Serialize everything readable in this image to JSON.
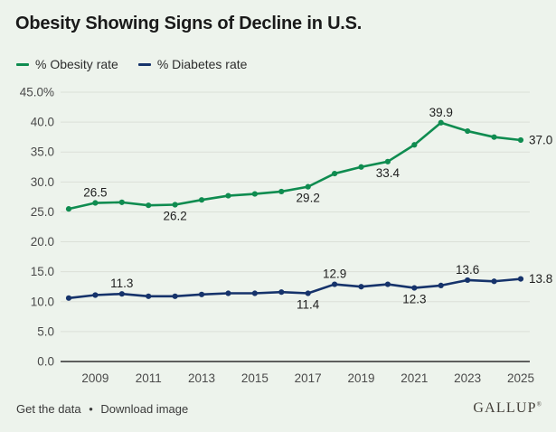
{
  "title": "Obesity Showing Signs of Decline in U.S.",
  "legend": [
    {
      "label": "% Obesity rate",
      "color": "#0f8c50"
    },
    {
      "label": "% Diabetes rate",
      "color": "#16336b"
    }
  ],
  "colors": {
    "background": "#edf3ec",
    "gridline": "#dbe0d8",
    "axis_line": "#2e2e2e",
    "tick_text": "#4a4a4a",
    "data_label_text": "#1e1e1e",
    "obesity_green": "#0f8c50",
    "diabetes_navy": "#16336b"
  },
  "chart_data": {
    "type": "line",
    "title": "Obesity Showing Signs of Decline in U.S.",
    "x": [
      2008,
      2009,
      2010,
      2011,
      2012,
      2013,
      2014,
      2015,
      2016,
      2017,
      2018,
      2019,
      2020,
      2021,
      2022,
      2023,
      2024,
      2025
    ],
    "series": [
      {
        "name": "% Obesity rate",
        "color": "#0f8c50",
        "values": [
          25.5,
          26.5,
          26.6,
          26.1,
          26.2,
          27.0,
          27.7,
          28.0,
          28.4,
          29.2,
          31.4,
          32.5,
          33.4,
          36.2,
          39.9,
          38.5,
          37.5,
          37.0
        ],
        "point_labels": [
          {
            "year": 2009,
            "text": "26.5",
            "pos": "above"
          },
          {
            "year": 2012,
            "text": "26.2",
            "pos": "below"
          },
          {
            "year": 2017,
            "text": "29.2",
            "pos": "below"
          },
          {
            "year": 2020,
            "text": "33.4",
            "pos": "below"
          },
          {
            "year": 2022,
            "text": "39.9",
            "pos": "above"
          },
          {
            "year": 2025,
            "text": "37.0",
            "pos": "right"
          }
        ]
      },
      {
        "name": "% Diabetes rate",
        "color": "#16336b",
        "values": [
          10.6,
          11.1,
          11.3,
          10.9,
          10.9,
          11.2,
          11.4,
          11.4,
          11.6,
          11.4,
          12.9,
          12.5,
          12.9,
          12.3,
          12.7,
          13.6,
          13.4,
          13.8
        ],
        "point_labels": [
          {
            "year": 2010,
            "text": "11.3",
            "pos": "above"
          },
          {
            "year": 2017,
            "text": "11.4",
            "pos": "below"
          },
          {
            "year": 2018,
            "text": "12.9",
            "pos": "above"
          },
          {
            "year": 2021,
            "text": "12.3",
            "pos": "below"
          },
          {
            "year": 2023,
            "text": "13.6",
            "pos": "above"
          },
          {
            "year": 2025,
            "text": "13.8",
            "pos": "right"
          }
        ]
      }
    ],
    "ylim": [
      0,
      45
    ],
    "yticks": [
      {
        "v": 45,
        "label": "45.0%"
      },
      {
        "v": 40,
        "label": "40.0"
      },
      {
        "v": 35,
        "label": "35.0"
      },
      {
        "v": 30,
        "label": "30.0"
      },
      {
        "v": 25,
        "label": "25.0"
      },
      {
        "v": 20,
        "label": "20.0"
      },
      {
        "v": 15,
        "label": "15.0"
      },
      {
        "v": 10,
        "label": "10.0"
      },
      {
        "v": 5,
        "label": "5.0"
      },
      {
        "v": 0,
        "label": "0.0"
      }
    ],
    "xticks": [
      {
        "v": 2009,
        "label": "2009"
      },
      {
        "v": 2011,
        "label": "2011"
      },
      {
        "v": 2013,
        "label": "2013"
      },
      {
        "v": 2015,
        "label": "2015"
      },
      {
        "v": 2017,
        "label": "2017"
      },
      {
        "v": 2019,
        "label": "2019"
      },
      {
        "v": 2021,
        "label": "2021"
      },
      {
        "v": 2023,
        "label": "2023"
      },
      {
        "v": 2025,
        "label": "2025"
      }
    ],
    "grid": true,
    "legend_position": "top-left"
  },
  "footer": {
    "link_get_data": "Get the data",
    "separator": "•",
    "link_download": "Download image",
    "brand": "GALLUP",
    "brand_mark": "®"
  }
}
